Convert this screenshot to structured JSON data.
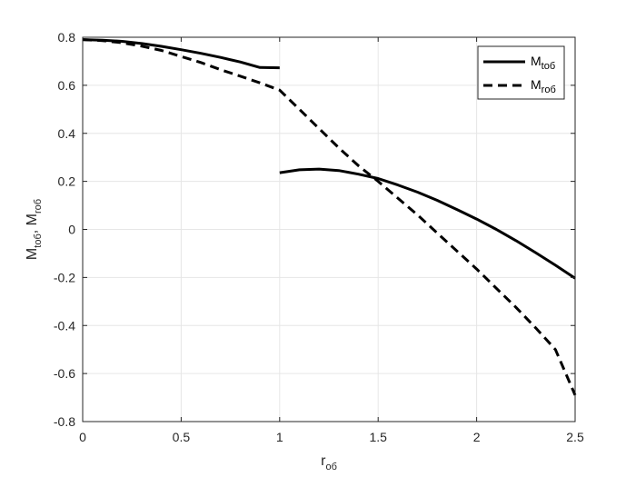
{
  "chart_data": {
    "type": "line",
    "title": "",
    "xlabel": {
      "base": "r",
      "sub": "об"
    },
    "ylabel": {
      "parts": [
        {
          "base": "M",
          "sub": "tоб"
        },
        {
          "sep": ", "
        },
        {
          "base": "M",
          "sub": "rоб"
        }
      ]
    },
    "xlim": [
      0,
      2.5
    ],
    "ylim": [
      -0.8,
      0.8
    ],
    "xticks": [
      0,
      0.5,
      1,
      1.5,
      2,
      2.5
    ],
    "xtick_labels": [
      "0",
      "0.5",
      "1",
      "1.5",
      "2",
      "2.5"
    ],
    "yticks": [
      -0.8,
      -0.6,
      -0.4,
      -0.2,
      0,
      0.2,
      0.4,
      0.6,
      0.8
    ],
    "ytick_labels": [
      "-0.8",
      "-0.6",
      "-0.4",
      "-0.2",
      "0",
      "0.2",
      "0.4",
      "0.6",
      "0.8"
    ],
    "grid": true,
    "legend_position": "top-right",
    "series": [
      {
        "name": {
          "base": "M",
          "sub": "tоб"
        },
        "style": "solid",
        "color": "#000000",
        "segments": [
          {
            "x": [
              0,
              0.1,
              0.2,
              0.3,
              0.4,
              0.5,
              0.6,
              0.7,
              0.8,
              0.9,
              1.0
            ],
            "y": [
              0.79,
              0.788,
              0.783,
              0.774,
              0.762,
              0.748,
              0.733,
              0.716,
              0.697,
              0.674,
              0.673
            ]
          },
          {
            "x": [
              1.0,
              1.1,
              1.2,
              1.3,
              1.4,
              1.5,
              1.6,
              1.7,
              1.8,
              1.9,
              2.0,
              2.1,
              2.2,
              2.3,
              2.4,
              2.5
            ],
            "y": [
              0.236,
              0.248,
              0.251,
              0.245,
              0.23,
              0.212,
              0.185,
              0.155,
              0.121,
              0.083,
              0.043,
              0.0,
              -0.047,
              -0.097,
              -0.149,
              -0.203
            ]
          }
        ]
      },
      {
        "name": {
          "base": "M",
          "sub": "rоб"
        },
        "style": "dashed",
        "color": "#000000",
        "segments": [
          {
            "x": [
              0,
              0.1,
              0.2,
              0.3,
              0.4,
              0.5,
              0.6,
              0.7,
              0.8,
              0.9,
              1.0,
              1.1,
              1.2,
              1.3,
              1.4,
              1.5,
              1.6,
              1.7,
              1.8,
              1.9,
              2.0,
              2.1,
              2.2,
              2.3,
              2.4,
              2.5
            ],
            "y": [
              0.79,
              0.786,
              0.777,
              0.763,
              0.745,
              0.72,
              0.695,
              0.665,
              0.638,
              0.61,
              0.58,
              0.5,
              0.42,
              0.34,
              0.265,
              0.2,
              0.13,
              0.06,
              -0.015,
              -0.09,
              -0.165,
              -0.245,
              -0.325,
              -0.41,
              -0.5,
              -0.69
            ]
          }
        ]
      }
    ]
  }
}
